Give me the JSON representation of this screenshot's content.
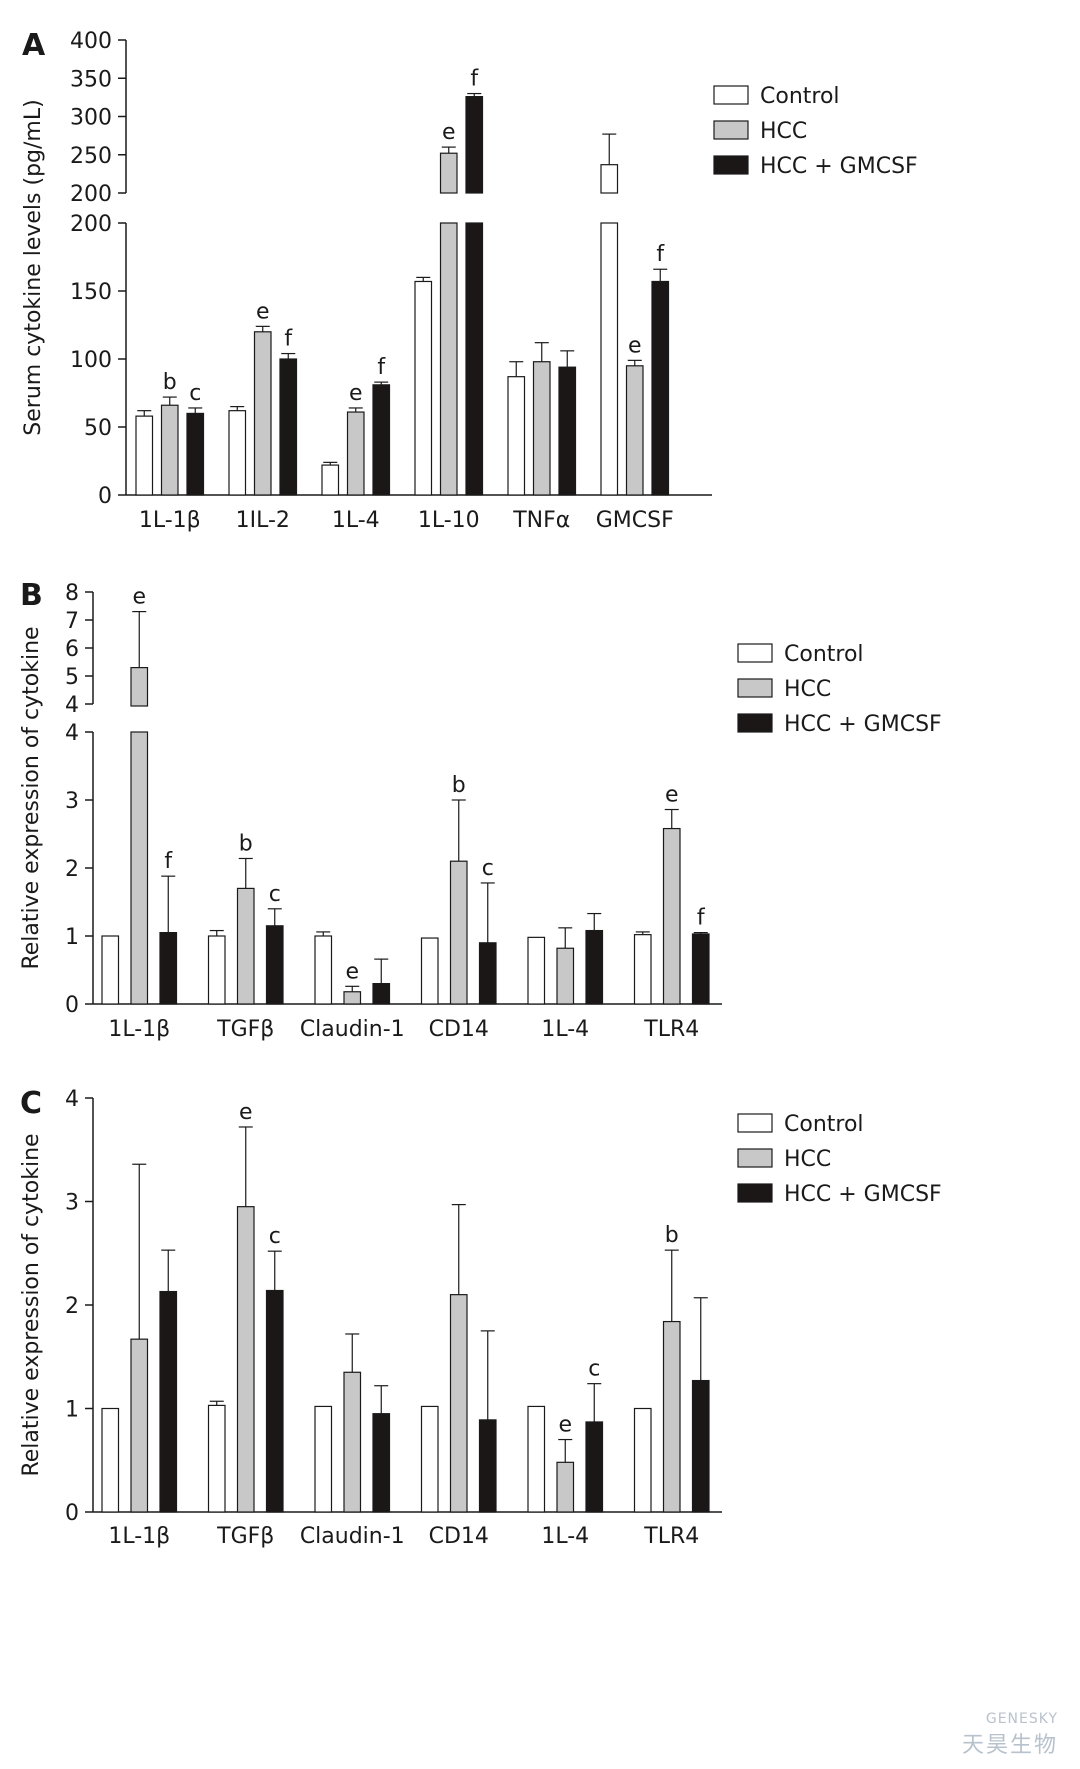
{
  "colors": {
    "control": "#ffffff",
    "hcc": "#c8c8c8",
    "hcc_gmcsf": "#1b1717",
    "stroke": "#1a1a1a"
  },
  "watermark": {
    "line1": "GENESKY",
    "line2": "天昊生物"
  },
  "chart_data": [
    {
      "panel": "A",
      "type": "bar",
      "ylabel": "Serum cytokine levels (pg/mL)",
      "broken_axis": true,
      "lower_yticks": [
        "0",
        "50",
        "100",
        "150",
        "200"
      ],
      "lower_ylim": [
        0,
        200
      ],
      "upper_yticks": [
        "200",
        "250",
        "300",
        "350",
        "400"
      ],
      "upper_ylim": [
        200,
        400
      ],
      "categories": [
        "1L-1β",
        "1IL-2",
        "1L-4",
        "1L-10",
        "TNFα",
        "GMCSF"
      ],
      "legend": {
        "position": "top-right",
        "entries": [
          "Control",
          "HCC",
          "HCC + GMCSF"
        ]
      },
      "series": [
        {
          "name": "Control",
          "values": [
            58,
            62,
            22,
            157,
            87,
            237
          ],
          "errors": [
            4,
            3,
            2,
            3,
            11,
            40
          ]
        },
        {
          "name": "HCC",
          "values": [
            66,
            120,
            61,
            252,
            98,
            95
          ],
          "errors": [
            6,
            4,
            3,
            8,
            14,
            4
          ]
        },
        {
          "name": "HCC + GMCSF",
          "values": [
            60,
            100,
            81,
            326,
            94,
            157
          ],
          "errors": [
            4,
            4,
            2,
            4,
            12,
            9
          ]
        }
      ],
      "annotations": [
        [
          "",
          "b",
          "c"
        ],
        [
          "",
          "e",
          "f"
        ],
        [
          "",
          "e",
          "f"
        ],
        [
          "",
          "e",
          "f"
        ],
        [
          "",
          "",
          ""
        ],
        [
          "",
          "e",
          "f"
        ]
      ]
    },
    {
      "panel": "B",
      "type": "bar",
      "ylabel": "Relative expression of cytokine",
      "broken_axis": true,
      "lower_yticks": [
        "0",
        "1",
        "2",
        "3",
        "4"
      ],
      "lower_ylim": [
        0,
        4
      ],
      "upper_yticks": [
        "4",
        "5",
        "6",
        "7",
        "8"
      ],
      "upper_ylim": [
        4,
        8
      ],
      "categories": [
        "1L-1β",
        "TGFβ",
        "Claudin-1",
        "CD14",
        "1L-4",
        "TLR4"
      ],
      "legend": {
        "position": "top-right",
        "entries": [
          "Control",
          "HCC",
          "HCC + GMCSF"
        ]
      },
      "series": [
        {
          "name": "Control",
          "values": [
            1.0,
            1.0,
            1.0,
            0.97,
            0.98,
            1.02
          ],
          "errors": [
            0,
            0.08,
            0.06,
            0,
            0,
            0.04
          ]
        },
        {
          "name": "HCC",
          "values": [
            5.3,
            1.7,
            0.18,
            2.1,
            0.82,
            2.58
          ],
          "errors": [
            2.0,
            0.44,
            0.08,
            0.9,
            0.3,
            0.28
          ]
        },
        {
          "name": "HCC + GMCSF",
          "values": [
            1.05,
            1.15,
            0.3,
            0.9,
            1.08,
            1.03
          ],
          "errors": [
            0.83,
            0.25,
            0.36,
            0.88,
            0.25,
            0.02
          ]
        }
      ],
      "annotations": [
        [
          "",
          "e",
          "f"
        ],
        [
          "",
          "b",
          "c"
        ],
        [
          "",
          "e",
          ""
        ],
        [
          "",
          "b",
          "c"
        ],
        [
          "",
          "",
          ""
        ],
        [
          "",
          "e",
          "f"
        ]
      ]
    },
    {
      "panel": "C",
      "type": "bar",
      "ylabel": "Relative expression of cytokine",
      "broken_axis": false,
      "yticks": [
        "0",
        "1",
        "2",
        "3",
        "4"
      ],
      "ylim": [
        0,
        4
      ],
      "categories": [
        "1L-1β",
        "TGFβ",
        "Claudin-1",
        "CD14",
        "1L-4",
        "TLR4"
      ],
      "legend": {
        "position": "top-right",
        "entries": [
          "Control",
          "HCC",
          "HCC + GMCSF"
        ]
      },
      "series": [
        {
          "name": "Control",
          "values": [
            1.0,
            1.03,
            1.02,
            1.02,
            1.02,
            1.0
          ],
          "errors": [
            0,
            0.04,
            0,
            0,
            0,
            0
          ]
        },
        {
          "name": "HCC",
          "values": [
            1.67,
            2.95,
            1.35,
            2.1,
            0.48,
            1.84
          ],
          "errors": [
            1.69,
            0.77,
            0.37,
            0.87,
            0.22,
            0.69
          ]
        },
        {
          "name": "HCC + GMCSF",
          "values": [
            2.13,
            2.14,
            0.95,
            0.89,
            0.87,
            1.27
          ],
          "errors": [
            0.4,
            0.38,
            0.27,
            0.86,
            0.37,
            0.8
          ]
        }
      ],
      "annotations": [
        [
          "",
          "",
          ""
        ],
        [
          "",
          "e",
          "c"
        ],
        [
          "",
          "",
          ""
        ],
        [
          "",
          "",
          ""
        ],
        [
          "",
          "e",
          "c"
        ],
        [
          "",
          "b",
          ""
        ]
      ]
    }
  ]
}
